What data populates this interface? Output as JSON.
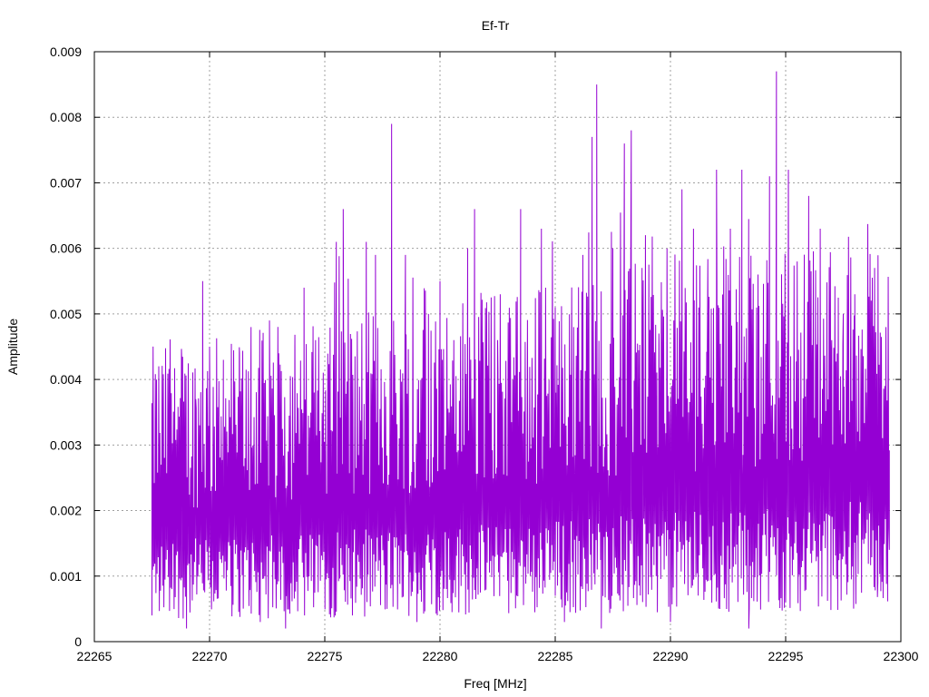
{
  "chart_data": {
    "type": "line",
    "title": "Ef-Tr",
    "xlabel": "Freq [MHz]",
    "ylabel": "Amplitude",
    "xlim": [
      22265,
      22300
    ],
    "ylim": [
      0,
      0.009
    ],
    "xticks": [
      "22265",
      "22270",
      "22275",
      "22280",
      "22285",
      "22290",
      "22295",
      "22300"
    ],
    "yticks": [
      "0",
      "0.001",
      "0.002",
      "0.003",
      "0.004",
      "0.005",
      "0.006",
      "0.007",
      "0.008",
      "0.009"
    ],
    "grid": true,
    "series_color": "#9400d3",
    "series": [
      {
        "x_start": 22267.5,
        "x_end": 22299.5,
        "peaks": [
          [
            22267.5,
            0.0004
          ],
          [
            22267.6,
            0.0013
          ],
          [
            22267.7,
            0.0036
          ],
          [
            22268.0,
            0.0031
          ],
          [
            22268.3,
            0.0033
          ],
          [
            22268.8,
            0.0042
          ],
          [
            22269.0,
            0.0002
          ],
          [
            22269.4,
            0.0037
          ],
          [
            22269.7,
            0.0055
          ],
          [
            22270.0,
            0.0045
          ],
          [
            22270.6,
            0.0043
          ],
          [
            22271.3,
            0.0044
          ],
          [
            22271.8,
            0.0048
          ],
          [
            22272.2,
            0.0003
          ],
          [
            22272.6,
            0.0049
          ],
          [
            22273.0,
            0.0044
          ],
          [
            22273.3,
            0.0002
          ],
          [
            22273.7,
            0.0045
          ],
          [
            22274.1,
            0.0054
          ],
          [
            22274.6,
            0.0046
          ],
          [
            22275.0,
            0.0017
          ],
          [
            22275.5,
            0.0061
          ],
          [
            22275.8,
            0.0066
          ],
          [
            22276.2,
            0.0004
          ],
          [
            22276.8,
            0.0061
          ],
          [
            22277.2,
            0.0059
          ],
          [
            22277.7,
            0.0005
          ],
          [
            22277.9,
            0.0079
          ],
          [
            22278.5,
            0.0059
          ],
          [
            22279.0,
            0.0003
          ],
          [
            22279.5,
            0.005
          ],
          [
            22280.0,
            0.0055
          ],
          [
            22280.6,
            0.0046
          ],
          [
            22281.2,
            0.006
          ],
          [
            22281.5,
            0.0066
          ],
          [
            22282.0,
            0.0009
          ],
          [
            22282.5,
            0.0046
          ],
          [
            22283.0,
            0.0042
          ],
          [
            22283.5,
            0.0066
          ],
          [
            22284.0,
            0.004
          ],
          [
            22284.4,
            0.0063
          ],
          [
            22285.0,
            0.0051
          ],
          [
            22285.4,
            0.0003
          ],
          [
            22285.8,
            0.0048
          ],
          [
            22286.2,
            0.0059
          ],
          [
            22286.6,
            0.0077
          ],
          [
            22286.8,
            0.0085
          ],
          [
            22287.0,
            0.0002
          ],
          [
            22287.5,
            0.006
          ],
          [
            22288.0,
            0.0076
          ],
          [
            22288.3,
            0.0078
          ],
          [
            22288.8,
            0.0044
          ],
          [
            22289.5,
            0.0047
          ],
          [
            22290.0,
            0.0003
          ],
          [
            22290.5,
            0.0069
          ],
          [
            22291.0,
            0.0063
          ],
          [
            22291.6,
            0.0045
          ],
          [
            22292.0,
            0.0072
          ],
          [
            22292.6,
            0.0063
          ],
          [
            22293.1,
            0.0072
          ],
          [
            22293.4,
            0.0002
          ],
          [
            22293.8,
            0.0056
          ],
          [
            22294.3,
            0.0071
          ],
          [
            22294.6,
            0.0087
          ],
          [
            22295.0,
            0.0006
          ],
          [
            22295.5,
            0.0058
          ],
          [
            22296.0,
            0.0068
          ],
          [
            22296.5,
            0.0063
          ],
          [
            22297.0,
            0.0046
          ],
          [
            22297.5,
            0.005
          ],
          [
            22298.0,
            0.0053
          ],
          [
            22298.5,
            0.0038
          ],
          [
            22299.0,
            0.0009
          ],
          [
            22299.3,
            0.0039
          ],
          [
            22299.5,
            0.0014
          ]
        ]
      }
    ]
  }
}
